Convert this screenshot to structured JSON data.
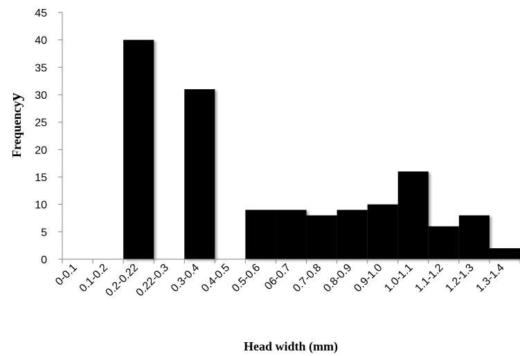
{
  "chart_data": {
    "type": "bar",
    "title": "",
    "xlabel": "Head width (mm)",
    "ylabel": "Frequency",
    "ylabel_suffix": "y",
    "ylim": [
      0,
      45
    ],
    "yticks": [
      0,
      5,
      10,
      15,
      20,
      25,
      30,
      35,
      40,
      45
    ],
    "grid": false,
    "legend": "none",
    "bar_color": "#000000",
    "categories": [
      "0-0.1",
      "0.1-0.2",
      "0.2-0.22",
      "0.22-0.3",
      "0.3-0.4",
      "0.4-0.5",
      "0.5-0.6",
      "06-0.7",
      "0.7-0.8",
      "0.8-0.9",
      "0.9-1.0",
      "1.0-1.1",
      "1.1-1.2",
      "1.2-1.3",
      "1.3-1.4"
    ],
    "values": [
      0,
      0,
      40,
      0,
      31,
      0,
      9,
      9,
      8,
      9,
      10,
      16,
      6,
      8,
      2
    ]
  }
}
